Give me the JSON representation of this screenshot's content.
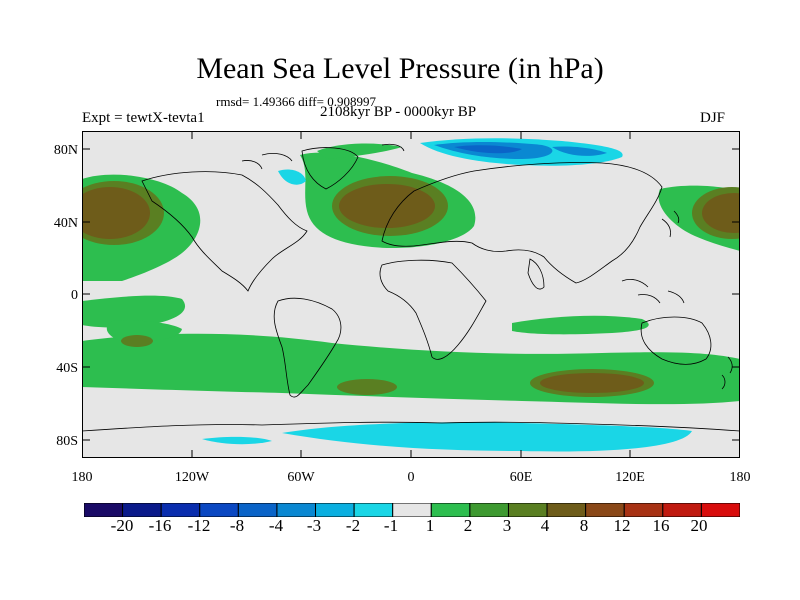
{
  "title": "Mean Sea Level Pressure (in hPa)",
  "stats_text": "rmsd= 1.49366 diff= 0.908997",
  "experiment_label": "Expt = tewtX-tevta1",
  "period_label": "2108kyr BP - 0000kyr BP",
  "season_label": "DJF",
  "lat_ticks": [
    "80N",
    "40N",
    "0",
    "40S",
    "80S"
  ],
  "lon_ticks": [
    "180",
    "120W",
    "60W",
    "0",
    "60E",
    "120E",
    "180"
  ],
  "colorbar": {
    "labels": [
      "-20",
      "-16",
      "-12",
      "-8",
      "-4",
      "-3",
      "-2",
      "-1",
      "1",
      "2",
      "3",
      "4",
      "8",
      "12",
      "16",
      "20"
    ],
    "colors": [
      "#1a0a66",
      "#0a1a8a",
      "#0a2eae",
      "#0b48c2",
      "#0a64c8",
      "#0a88d2",
      "#0aafe0",
      "#1ad6e6",
      "#e6e6e6",
      "#2dbe4f",
      "#3e9a31",
      "#5a7f22",
      "#6e5c1a",
      "#8a4818",
      "#a83214",
      "#c01a10",
      "#d80c0c"
    ]
  },
  "colors": {
    "land_outline": "#000000",
    "neutral": "#e6e6e6",
    "green": "#2dbe4f",
    "dark_green": "#3e9a31",
    "olive": "#5a7f22",
    "brown": "#6e5c1a",
    "cyan": "#1ad6e6",
    "blue": "#0a88d2",
    "dark_blue": "#0a64c8"
  }
}
